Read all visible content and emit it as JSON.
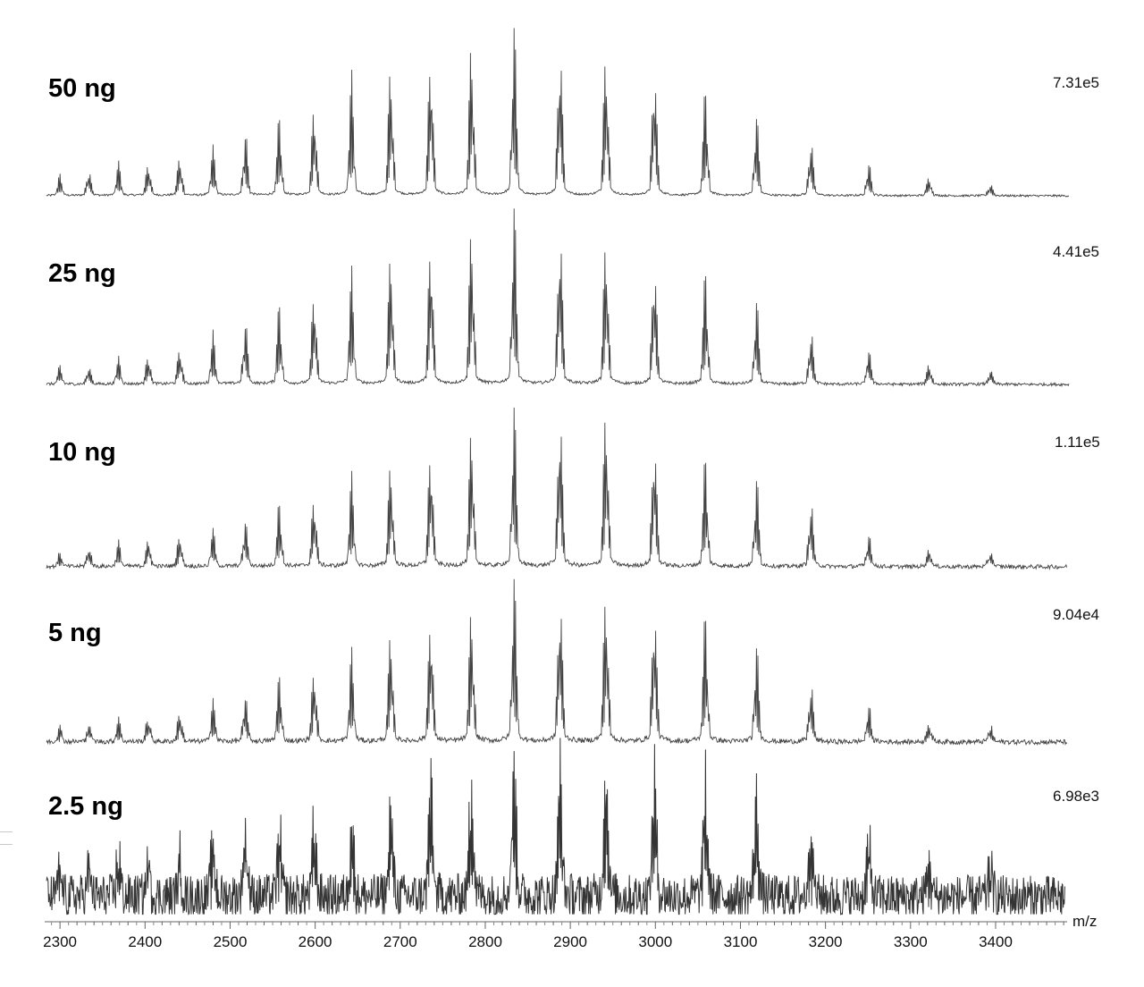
{
  "chart_data": {
    "type": "line",
    "title": "",
    "xlabel": "m/z",
    "ylabel": "",
    "xlim": [
      2282,
      3482
    ],
    "x_ticks": [
      2300,
      2400,
      2500,
      2600,
      2700,
      2800,
      2900,
      3000,
      3100,
      3200,
      3300,
      3400
    ],
    "minor_tick_step": 20,
    "grid": false,
    "legend": null,
    "peak_mz": [
      2300,
      2334,
      2369,
      2404,
      2441,
      2480,
      2518,
      2558,
      2599,
      2643,
      2689,
      2736,
      2784,
      2834,
      2888,
      2942,
      2999,
      3059,
      3119,
      3183,
      3251,
      3322,
      3394
    ],
    "series": [
      {
        "name": "50 ng",
        "max_intensity": "7.31e5",
        "noise": 0.006,
        "relative_peak_heights": [
          0.12,
          0.16,
          0.19,
          0.2,
          0.24,
          0.28,
          0.38,
          0.46,
          0.58,
          0.7,
          0.8,
          0.9,
          0.95,
          1.0,
          0.94,
          0.91,
          0.82,
          0.63,
          0.48,
          0.34,
          0.2,
          0.12,
          0.07
        ]
      },
      {
        "name": "25 ng",
        "max_intensity": "4.41e5",
        "noise": 0.008,
        "relative_peak_heights": [
          0.1,
          0.1,
          0.15,
          0.17,
          0.21,
          0.28,
          0.36,
          0.45,
          0.56,
          0.62,
          0.78,
          0.87,
          0.93,
          1.0,
          0.94,
          0.87,
          0.75,
          0.64,
          0.47,
          0.31,
          0.2,
          0.12,
          0.08
        ]
      },
      {
        "name": "10 ng",
        "max_intensity": "1.11e5",
        "noise": 0.012,
        "relative_peak_heights": [
          0.08,
          0.12,
          0.14,
          0.17,
          0.2,
          0.22,
          0.28,
          0.38,
          0.45,
          0.53,
          0.65,
          0.75,
          0.86,
          0.94,
          0.97,
          1.0,
          0.83,
          0.65,
          0.53,
          0.4,
          0.2,
          0.12,
          0.1
        ]
      },
      {
        "name": "5 ng",
        "max_intensity": "9.04e4",
        "noise": 0.015,
        "relative_peak_heights": [
          0.1,
          0.12,
          0.14,
          0.16,
          0.19,
          0.25,
          0.28,
          0.4,
          0.48,
          0.54,
          0.69,
          0.82,
          0.85,
          1.0,
          0.95,
          0.97,
          0.9,
          0.78,
          0.59,
          0.37,
          0.22,
          0.13,
          0.1
        ]
      },
      {
        "name": "2.5 ng",
        "max_intensity": "6.98e3",
        "noise": 0.14,
        "relative_peak_heights": [
          0.22,
          0.26,
          0.32,
          0.3,
          0.28,
          0.4,
          0.55,
          0.47,
          0.49,
          0.55,
          0.65,
          0.82,
          0.82,
          1.0,
          0.9,
          0.92,
          0.88,
          0.8,
          0.7,
          0.55,
          0.4,
          0.28,
          0.25
        ]
      }
    ]
  },
  "panels": [
    {
      "label": "50 ng",
      "scale": "7.31e5"
    },
    {
      "label": "25 ng",
      "scale": "4.41e5"
    },
    {
      "label": "10 ng",
      "scale": "1.11e5"
    },
    {
      "label": "5 ng",
      "scale": "9.04e4"
    },
    {
      "label": "2.5 ng",
      "scale": "6.98e3"
    }
  ],
  "axis": {
    "unit": "m/z",
    "ticks": [
      "2300",
      "2400",
      "2500",
      "2600",
      "2700",
      "2800",
      "2900",
      "3000",
      "3100",
      "3200",
      "3300",
      "3400"
    ]
  }
}
